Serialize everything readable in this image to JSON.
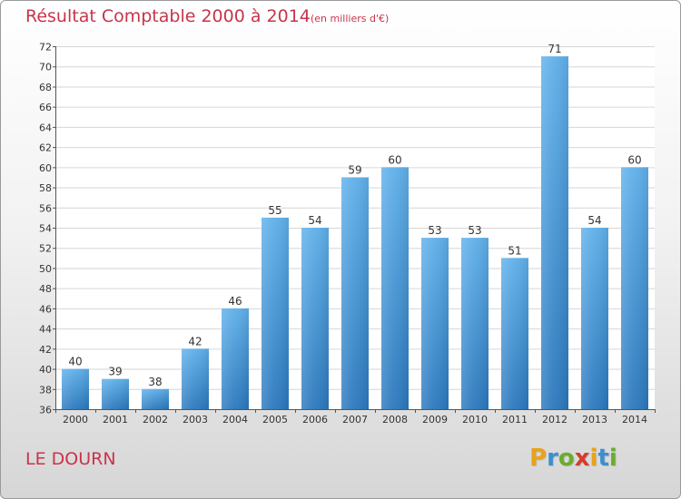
{
  "chart_data": {
    "type": "bar",
    "title": "Résultat Comptable 2000 à 2014",
    "subtitle": "(en milliers d'€)",
    "categories": [
      "2000",
      "2001",
      "2002",
      "2003",
      "2004",
      "2005",
      "2006",
      "2007",
      "2008",
      "2009",
      "2010",
      "2011",
      "2012",
      "2013",
      "2014"
    ],
    "values": [
      40,
      39,
      38,
      42,
      46,
      55,
      54,
      59,
      60,
      53,
      53,
      51,
      71,
      54,
      60
    ],
    "ylim": [
      36,
      72
    ],
    "yticks": [
      36,
      38,
      40,
      42,
      44,
      46,
      48,
      50,
      52,
      54,
      56,
      58,
      60,
      62,
      64,
      66,
      68,
      70,
      72
    ],
    "xlabel": "",
    "ylabel": "",
    "grid": true,
    "bar_color": "#3f93d6"
  },
  "location": "LE DOURN",
  "brand": {
    "letters": [
      "P",
      "r",
      "o",
      "x",
      "i",
      "t",
      "i"
    ],
    "colors": [
      "#e8a31b",
      "#3c8fcf",
      "#6aad2b",
      "#d83b2a",
      "#e8a31b",
      "#3c8fcf",
      "#6aad2b"
    ]
  },
  "colors": {
    "accent": "#c8344b",
    "grid": "#d6d6d6",
    "axis": "#555555"
  }
}
